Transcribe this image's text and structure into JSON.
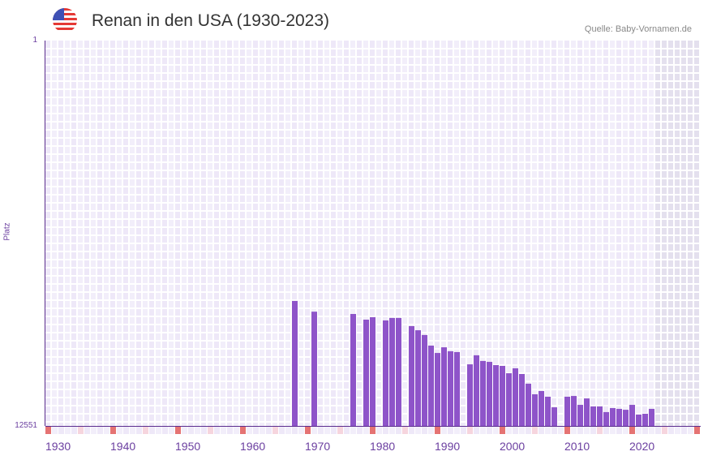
{
  "header": {
    "title": "Renan in den USA (1930-2023)",
    "source": "Quelle: Baby-Vornamen.de",
    "flag_icon": "us-flag-icon"
  },
  "chart_data": {
    "type": "bar",
    "title": "Renan in den USA (1930-2023)",
    "xlabel": "",
    "ylabel": "Platz",
    "y_axis_inverted": true,
    "ylim": [
      1,
      12551
    ],
    "ytick_labels": [
      "1",
      "12551"
    ],
    "xlim": [
      1930,
      2030
    ],
    "xtick_labels": [
      "1930",
      "1940",
      "1950",
      "1960",
      "1970",
      "1980",
      "1990",
      "2000",
      "2010",
      "2020"
    ],
    "data_range_end": 2023,
    "colors": {
      "bar": "#8e54c9",
      "decade_marker": "#e57373",
      "half_decade_marker": "#f6d5de",
      "grid_bg": "#eee8f8",
      "future_bg": "#e4e0ee",
      "axis": "#5b2d8e"
    },
    "x": [
      1968,
      1971,
      1977,
      1979,
      1980,
      1982,
      1983,
      1984,
      1986,
      1987,
      1988,
      1989,
      1990,
      1991,
      1992,
      1993,
      1995,
      1996,
      1997,
      1998,
      1999,
      2000,
      2001,
      2002,
      2003,
      2004,
      2005,
      2006,
      2007,
      2008,
      2010,
      2011,
      2012,
      2013,
      2014,
      2015,
      2016,
      2017,
      2018,
      2019,
      2020,
      2021,
      2022,
      2023
    ],
    "values": [
      8480,
      8830,
      8905,
      9090,
      9010,
      9115,
      9035,
      9035,
      9300,
      9435,
      9590,
      9935,
      10175,
      9990,
      10120,
      10145,
      10545,
      10250,
      10435,
      10465,
      10570,
      10595,
      10835,
      10675,
      10860,
      11175,
      11520,
      11415,
      11600,
      11945,
      11600,
      11575,
      11865,
      11655,
      11915,
      11915,
      12100,
      11970,
      11995,
      12025,
      11865,
      12180,
      12155,
      11995
    ]
  }
}
